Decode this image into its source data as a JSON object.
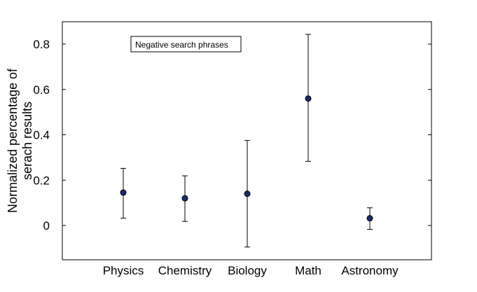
{
  "chart_data": {
    "type": "scatter",
    "categories": [
      "Physics",
      "Chemistry",
      "Biology",
      "Math",
      "Astronomy"
    ],
    "values": [
      0.145,
      0.12,
      0.14,
      0.56,
      0.032
    ],
    "error_low": [
      0.032,
      0.018,
      -0.095,
      0.283,
      -0.017
    ],
    "error_high": [
      0.252,
      0.219,
      0.375,
      0.843,
      0.078
    ],
    "ylabel_line1": "Normalized percentage of",
    "ylabel_line2": "serach results",
    "ylim": [
      -0.15,
      0.9
    ],
    "yticks": [
      0,
      0.2,
      0.4,
      0.6,
      0.8
    ],
    "ytick_labels": [
      "0",
      "0.2",
      "0.4",
      "0.6",
      "0.8"
    ],
    "legend_label": "Negative search phrases",
    "legend_position": "top-left",
    "grid": false,
    "marker_color": "#1a2a6c"
  }
}
